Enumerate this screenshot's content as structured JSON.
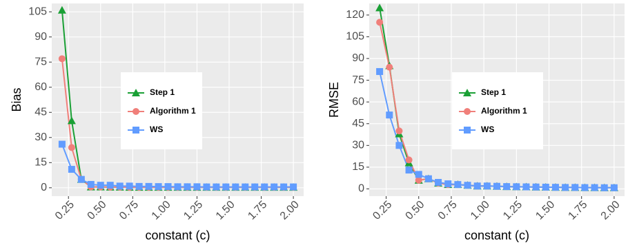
{
  "chart_data": [
    {
      "type": "line",
      "ylabel": "Bias",
      "xlabel": "constant (c)",
      "x": [
        0.2,
        0.275,
        0.35,
        0.425,
        0.5,
        0.575,
        0.65,
        0.725,
        0.8,
        0.875,
        0.95,
        1.025,
        1.1,
        1.175,
        1.25,
        1.325,
        1.4,
        1.475,
        1.55,
        1.625,
        1.7,
        1.775,
        1.85,
        1.925,
        2.0
      ],
      "xlim": [
        0.12,
        2.08
      ],
      "xticks": [
        0.25,
        {
          "value": 0.5,
          "label": "0.50"
        },
        0.75,
        {
          "value": 1,
          "label": "1.00"
        },
        1.25,
        {
          "value": 1.5,
          "label": "1.50"
        },
        1.75,
        {
          "value": 2,
          "label": "2.00"
        }
      ],
      "ylim": [
        -5,
        110
      ],
      "yticks": [
        0,
        15,
        30,
        45,
        60,
        75,
        90,
        105
      ],
      "grid": true,
      "legend_position": "center",
      "series": [
        {
          "name": "Step 1",
          "color": "#1aa035",
          "marker": "triangle",
          "values": [
            106,
            40,
            5,
            0.5,
            0.5,
            0.4,
            0.4,
            0.3,
            0.3,
            0.3,
            0.3,
            0.3,
            0.3,
            0.3,
            0.3,
            0.3,
            0.3,
            0.3,
            0.3,
            0.3,
            0.3,
            0.3,
            0.3,
            0.3,
            0.3
          ]
        },
        {
          "name": "Algorithm 1",
          "color": "#f07f7a",
          "marker": "circle",
          "values": [
            77,
            24,
            5,
            0.5,
            0.5,
            0.4,
            0.4,
            0.3,
            0.3,
            0.3,
            0.3,
            0.3,
            0.3,
            0.3,
            0.3,
            0.3,
            0.3,
            0.3,
            0.3,
            0.3,
            0.3,
            0.3,
            0.3,
            0.3,
            0.3
          ]
        },
        {
          "name": "WS",
          "color": "#619cff",
          "marker": "square",
          "values": [
            26,
            11,
            5,
            2,
            1.5,
            1.5,
            1,
            1,
            0.8,
            0.8,
            0.7,
            0.7,
            0.6,
            0.6,
            0.6,
            0.5,
            0.5,
            0.5,
            0.5,
            0.5,
            0.5,
            0.5,
            0.5,
            0.5,
            0.5
          ]
        }
      ]
    },
    {
      "type": "line",
      "ylabel": "RMSE",
      "xlabel": "constant (c)",
      "x": [
        0.2,
        0.275,
        0.35,
        0.425,
        0.5,
        0.575,
        0.65,
        0.725,
        0.8,
        0.875,
        0.95,
        1.025,
        1.1,
        1.175,
        1.25,
        1.325,
        1.4,
        1.475,
        1.55,
        1.625,
        1.7,
        1.775,
        1.85,
        1.925,
        2.0
      ],
      "xlim": [
        0.12,
        2.08
      ],
      "xticks": [
        0.25,
        {
          "value": 0.5,
          "label": "0.50"
        },
        0.75,
        {
          "value": 1,
          "label": "1.00"
        },
        1.25,
        {
          "value": 1.5,
          "label": "1.50"
        },
        1.75,
        {
          "value": 2,
          "label": "2.00"
        }
      ],
      "ylim": [
        -5,
        128
      ],
      "yticks": [
        0,
        15,
        30,
        45,
        60,
        75,
        90,
        105,
        120
      ],
      "grid": true,
      "legend_position": "center",
      "series": [
        {
          "name": "Step 1",
          "color": "#1aa035",
          "marker": "triangle",
          "values": [
            125,
            85,
            38,
            18,
            6,
            7,
            4,
            3,
            3,
            2.5,
            2,
            2,
            1.8,
            1.6,
            1.5,
            1.4,
            1.3,
            1.2,
            1.1,
            1,
            1,
            0.9,
            0.9,
            0.8,
            0.8
          ]
        },
        {
          "name": "Algorithm 1",
          "color": "#f07f7a",
          "marker": "circle",
          "values": [
            115,
            84,
            40,
            20,
            6,
            7,
            4,
            3,
            3,
            2.5,
            2,
            2,
            1.8,
            1.6,
            1.5,
            1.4,
            1.3,
            1.2,
            1.1,
            1,
            1,
            0.9,
            0.9,
            0.8,
            0.8
          ]
        },
        {
          "name": "WS",
          "color": "#619cff",
          "marker": "square",
          "values": [
            81,
            51,
            30,
            13,
            10,
            7,
            4.5,
            3.5,
            3,
            2.5,
            2,
            2,
            1.8,
            1.6,
            1.5,
            1.4,
            1.3,
            1.2,
            1.1,
            1,
            1,
            0.9,
            0.9,
            0.8,
            0.8
          ]
        }
      ]
    }
  ]
}
